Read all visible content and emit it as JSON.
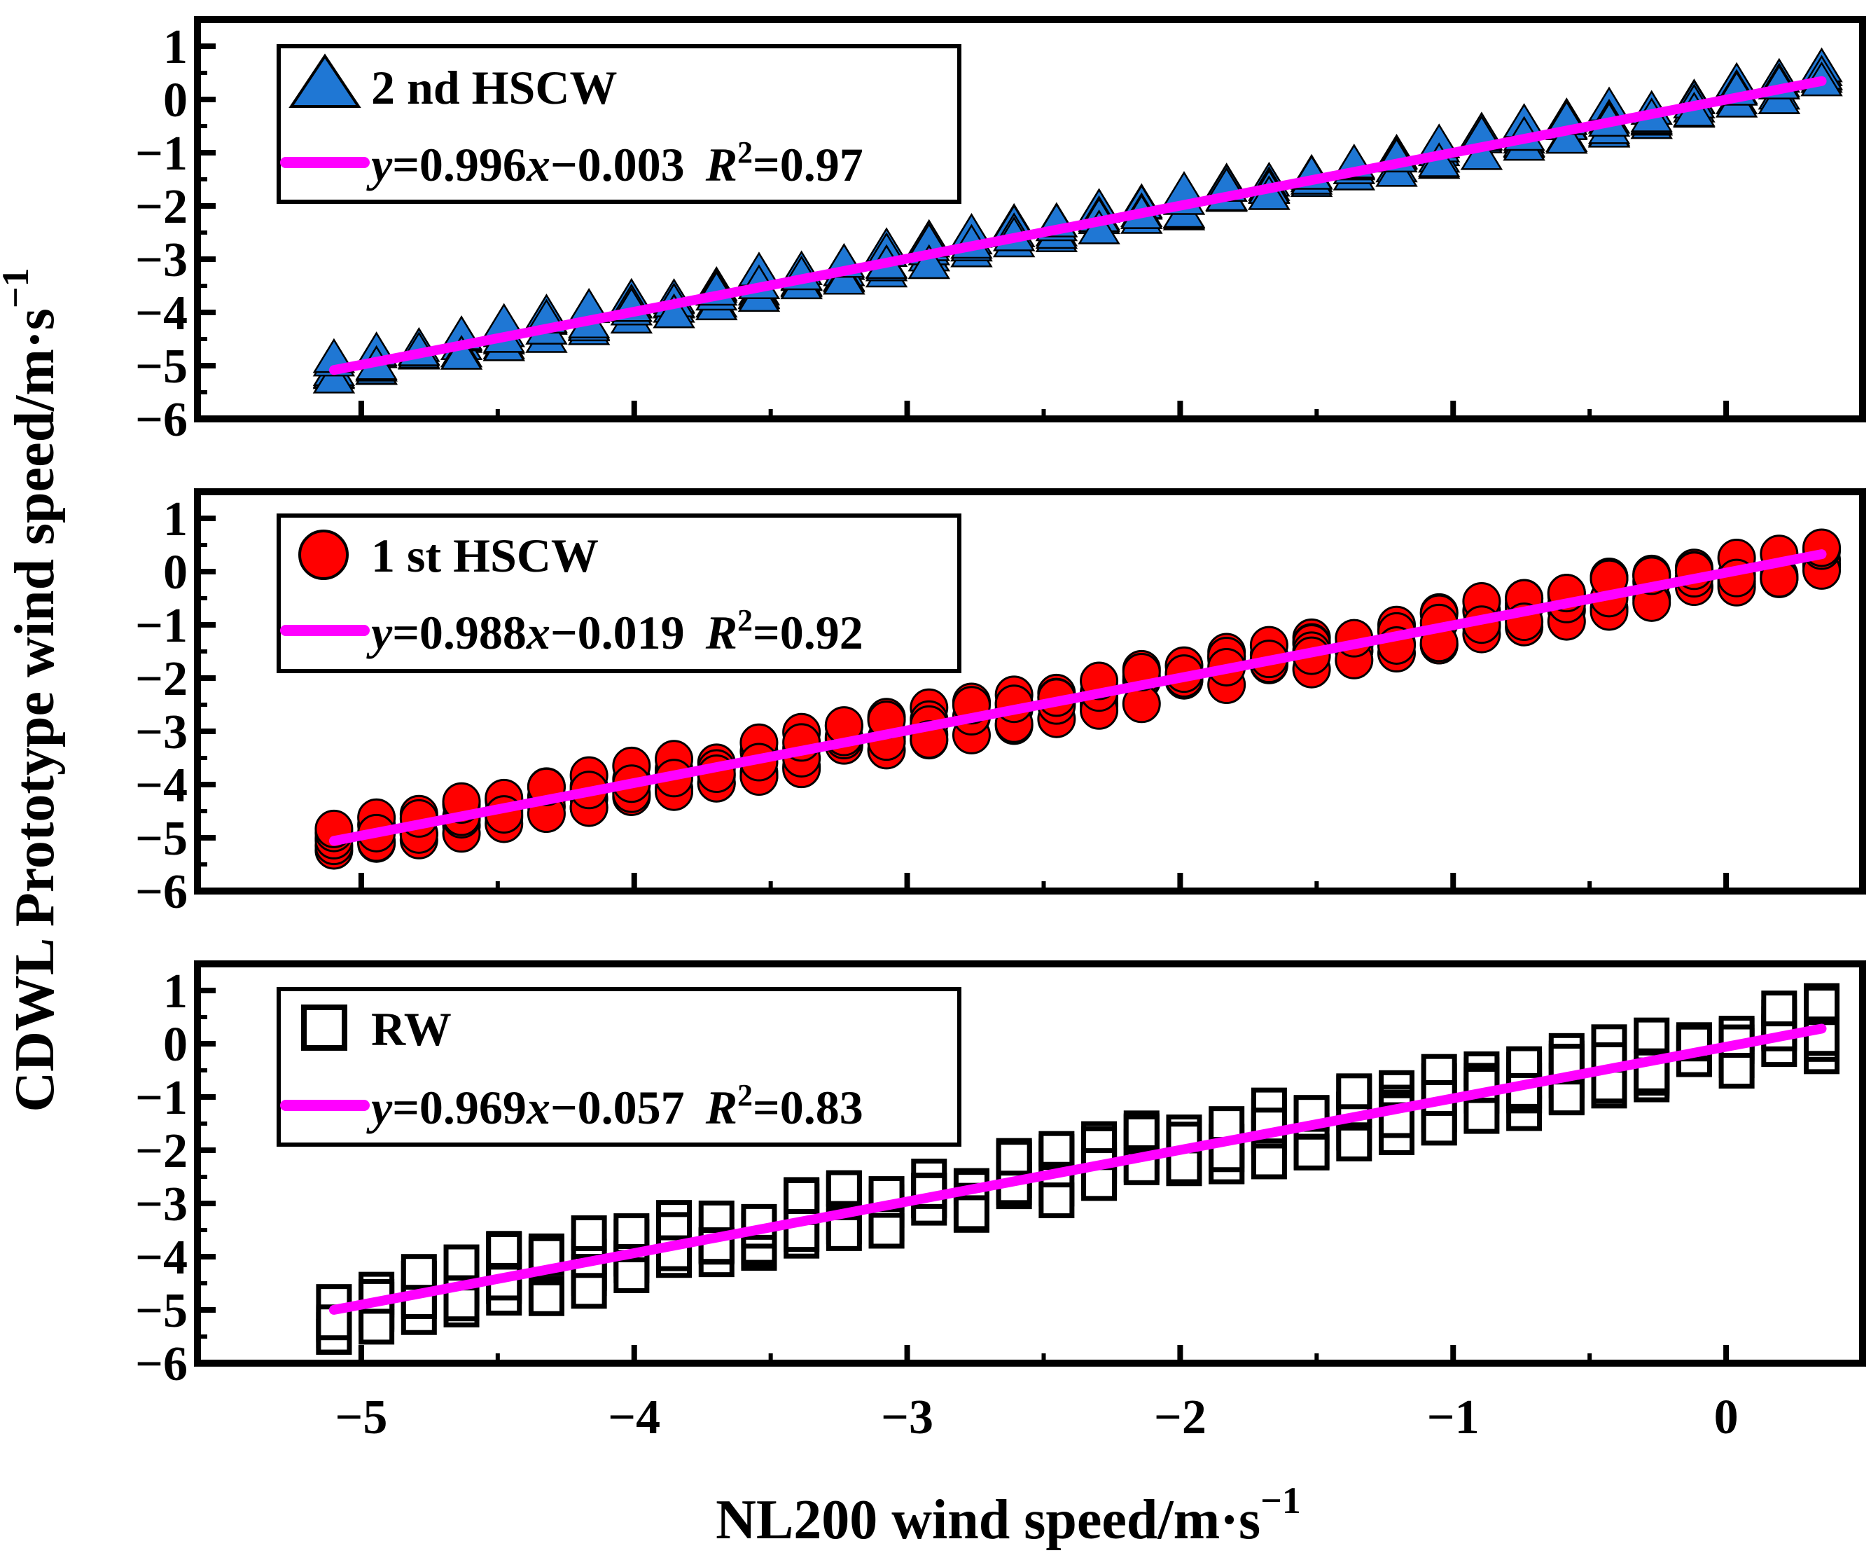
{
  "chart_data": [
    {
      "type": "scatter",
      "xlim": [
        -5.6,
        0.5
      ],
      "ylim": [
        -6,
        1.5
      ],
      "yticks": [
        1,
        0,
        -1,
        -2,
        -3,
        -4,
        -5,
        -6
      ],
      "series": [
        {
          "name": "2 nd HSCW",
          "marker": "triangle",
          "color": "#1f77d4",
          "spread": 0.25,
          "seed": 11
        },
        {
          "name": "",
          "marker": "line",
          "color": "#ff00ff",
          "slope": 0.996,
          "intercept": -0.003,
          "x_range": [
            -5.1,
            0.35
          ]
        }
      ],
      "annotation": {
        "equation_prefix": "y",
        "equation_mid": "=0.996",
        "equation_var": "x",
        "equation_tail": "−0.003",
        "r2_label": "R",
        "r2_sup": "2",
        "r2_value": "=0.97"
      }
    },
    {
      "type": "scatter",
      "xlim": [
        -5.6,
        0.5
      ],
      "ylim": [
        -6,
        1.5
      ],
      "yticks": [
        1,
        0,
        -1,
        -2,
        -3,
        -4,
        -5,
        -6
      ],
      "series": [
        {
          "name": "1 st HSCW",
          "marker": "circle",
          "color": "#ff0000",
          "spread": 0.35,
          "seed": 23
        },
        {
          "name": "",
          "marker": "line",
          "color": "#ff00ff",
          "slope": 0.988,
          "intercept": -0.019,
          "x_range": [
            -5.1,
            0.35
          ]
        }
      ],
      "annotation": {
        "equation_prefix": "y",
        "equation_mid": "=0.988",
        "equation_var": "x",
        "equation_tail": "−0.019",
        "r2_label": "R",
        "r2_sup": "2",
        "r2_value": "=0.92"
      }
    },
    {
      "type": "scatter",
      "xlim": [
        -5.6,
        0.5
      ],
      "ylim": [
        -6,
        1.5
      ],
      "yticks": [
        1,
        0,
        -1,
        -2,
        -3,
        -4,
        -5,
        -6
      ],
      "xticks": [
        -5,
        -4,
        -3,
        -2,
        -1,
        0
      ],
      "series": [
        {
          "name": "RW",
          "marker": "square",
          "color": "#000000",
          "spread": 0.55,
          "seed": 37
        },
        {
          "name": "",
          "marker": "line",
          "color": "#ff00ff",
          "slope": 0.969,
          "intercept": -0.057,
          "x_range": [
            -5.1,
            0.35
          ]
        }
      ],
      "annotation": {
        "equation_prefix": "y",
        "equation_mid": "=0.969",
        "equation_var": "x",
        "equation_tail": "−0.057",
        "r2_label": "R",
        "r2_sup": "2",
        "r2_value": "=0.83"
      }
    }
  ],
  "axes": {
    "xlabel_main": "NL200 wind speed/m·s",
    "xlabel_sup": "−1",
    "ylabel_main": "CDWL Prototype wind speed/m·s",
    "ylabel_sup": "−1"
  },
  "x_tick_labels": [
    "−5",
    "−4",
    "−3",
    "−2",
    "−1",
    "0"
  ],
  "y_tick_labels": [
    "1",
    "0",
    "−1",
    "−2",
    "−3",
    "−4",
    "−5",
    "−6"
  ]
}
